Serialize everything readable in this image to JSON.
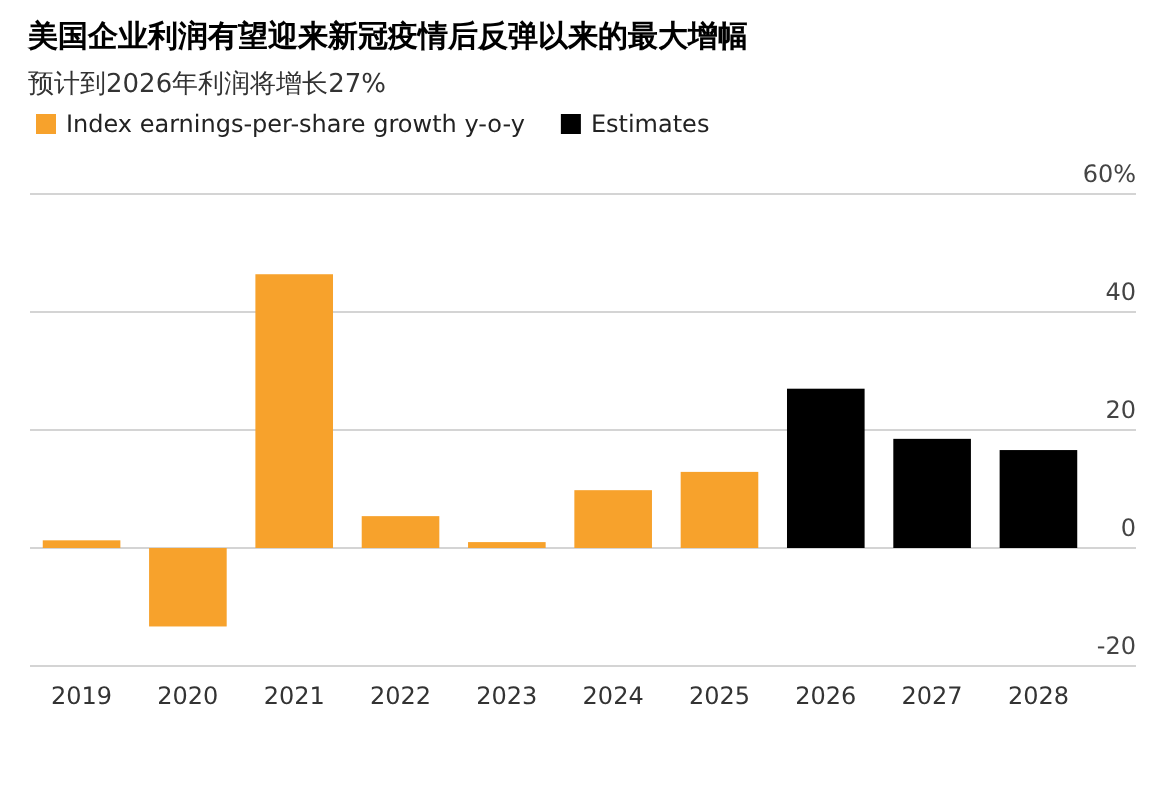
{
  "chart_data": {
    "type": "bar",
    "title": "美国企业利润有望迎来新冠疫情后反弹以来的最大增幅",
    "subtitle": "预计到2026年利润将增长27%",
    "categories": [
      "2019",
      "2020",
      "2021",
      "2022",
      "2023",
      "2024",
      "2025",
      "2026",
      "2027",
      "2028"
    ],
    "series": [
      {
        "name": "Index earnings-per-share growth y-o-y",
        "color": "#f7a22c",
        "values": [
          1.3,
          -13.3,
          46.4,
          5.4,
          1,
          9.8,
          12.9,
          null,
          null,
          null
        ]
      },
      {
        "name": "Estimates",
        "color": "#000000",
        "values": [
          null,
          null,
          null,
          null,
          null,
          null,
          null,
          27,
          18.5,
          16.6
        ]
      }
    ],
    "ylim": [
      -20,
      60
    ],
    "yticks": [
      {
        "value": 60,
        "label": "60%"
      },
      40,
      20,
      0,
      -20
    ],
    "grid": "y",
    "legend": "top left"
  }
}
